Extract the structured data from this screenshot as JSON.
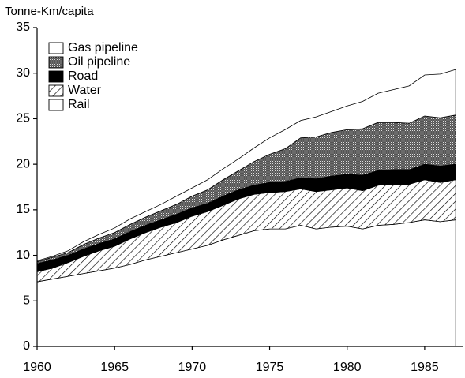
{
  "chart_data": {
    "type": "stacked_area",
    "y_label": "Tonne-Km/capita",
    "x": [
      1960,
      1961,
      1962,
      1963,
      1964,
      1965,
      1966,
      1967,
      1968,
      1969,
      1970,
      1971,
      1972,
      1973,
      1974,
      1975,
      1976,
      1977,
      1978,
      1979,
      1980,
      1981,
      1982,
      1983,
      1984,
      1985,
      1986,
      1987
    ],
    "series": [
      {
        "name": "Rail",
        "color": "#ffffff",
        "pattern": "none",
        "values": [
          7.1,
          7.4,
          7.7,
          8.0,
          8.3,
          8.6,
          9.0,
          9.5,
          9.9,
          10.3,
          10.7,
          11.1,
          11.7,
          12.2,
          12.7,
          12.9,
          12.9,
          13.3,
          12.9,
          13.1,
          13.2,
          12.9,
          13.3,
          13.4,
          13.6,
          13.9,
          13.7,
          13.9
        ]
      },
      {
        "name": "Water",
        "color": "#000000",
        "pattern": "hatch",
        "values": [
          1.1,
          1.2,
          1.5,
          1.9,
          2.2,
          2.4,
          2.8,
          3.0,
          3.2,
          3.3,
          3.6,
          3.7,
          3.8,
          4.0,
          4.0,
          4.0,
          4.1,
          4.0,
          4.1,
          4.1,
          4.2,
          4.2,
          4.4,
          4.4,
          4.2,
          4.4,
          4.3,
          4.4
        ]
      },
      {
        "name": "Road",
        "color": "#000000",
        "pattern": "solid",
        "values": [
          0.9,
          0.9,
          0.8,
          0.8,
          0.8,
          0.8,
          0.8,
          0.8,
          0.8,
          0.9,
          0.9,
          0.9,
          1.0,
          1.0,
          1.0,
          1.1,
          1.1,
          1.2,
          1.4,
          1.5,
          1.5,
          1.7,
          1.6,
          1.6,
          1.6,
          1.7,
          1.8,
          1.7
        ]
      },
      {
        "name": "Oil pipeline",
        "color": "#000000",
        "pattern": "dots",
        "values": [
          0.2,
          0.3,
          0.3,
          0.5,
          0.6,
          0.7,
          0.8,
          0.9,
          1.0,
          1.1,
          1.3,
          1.5,
          1.8,
          2.1,
          2.6,
          3.1,
          3.6,
          4.4,
          4.6,
          4.8,
          4.9,
          5.1,
          5.3,
          5.2,
          5.1,
          5.3,
          5.3,
          5.4
        ]
      },
      {
        "name": "Gas pipeline",
        "color": "#ffffff",
        "pattern": "none",
        "values": [
          0.1,
          0.1,
          0.2,
          0.3,
          0.4,
          0.5,
          0.6,
          0.6,
          0.7,
          0.9,
          0.9,
          1.1,
          1.2,
          1.3,
          1.5,
          1.8,
          2.1,
          1.9,
          2.2,
          2.3,
          2.6,
          3.0,
          3.2,
          3.6,
          4.1,
          4.5,
          4.8,
          5.0
        ]
      }
    ],
    "xlim": [
      1960,
      1987.5
    ],
    "xticks": [
      1960,
      1965,
      1970,
      1975,
      1980,
      1985
    ],
    "ylim": [
      0,
      35
    ],
    "yticks": [
      0,
      5,
      10,
      15,
      20,
      25,
      30,
      35
    ],
    "legend": "upper left"
  }
}
